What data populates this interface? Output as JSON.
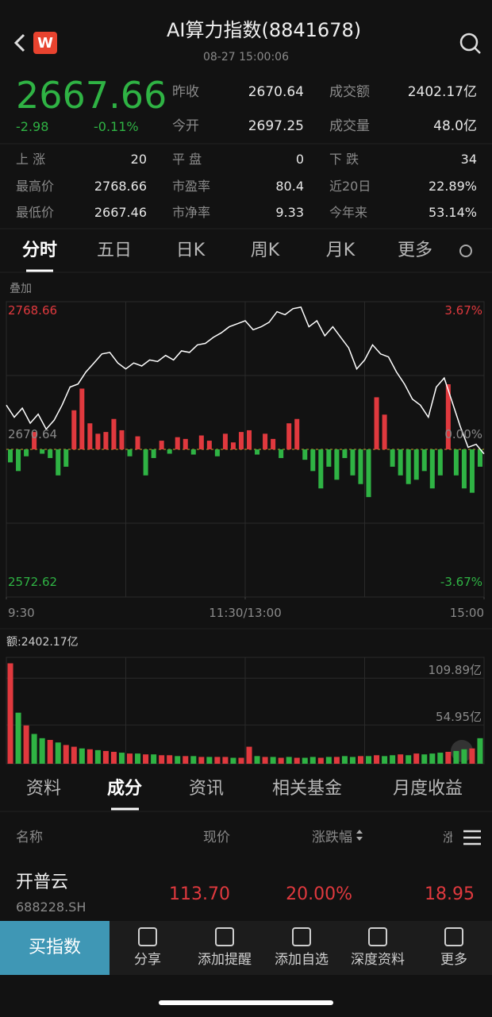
{
  "header": {
    "title": "AI算力指数(8841678)",
    "time": "08-27 15:00:06"
  },
  "quote": {
    "price": "2667.66",
    "change": "-2.98",
    "change_pct": "-0.11%"
  },
  "summary": [
    [
      "昨收",
      "2670.64",
      "成交额",
      "2402.17亿"
    ],
    [
      "今开",
      "2697.25",
      "成交量",
      "48.0亿"
    ]
  ],
  "stats": [
    [
      "上 涨",
      "20",
      "平 盘",
      "0",
      "下 跌",
      "34"
    ],
    [
      "最高价",
      "2768.66",
      "市盈率",
      "80.4",
      "近20日",
      "22.89%"
    ],
    [
      "最低价",
      "2667.46",
      "市净率",
      "9.33",
      "今年来",
      "53.14%"
    ]
  ],
  "chart_tabs": [
    "分时",
    "五日",
    "日K",
    "周K",
    "月K",
    "更多"
  ],
  "overlay_label": "叠加",
  "price_chart": {
    "type": "line",
    "x": [
      0,
      4,
      8,
      12,
      16,
      20,
      24,
      28,
      32,
      36,
      40,
      44,
      48,
      52,
      56,
      60,
      64,
      68,
      72,
      76,
      80,
      84,
      88,
      92,
      96,
      100,
      104,
      108,
      112,
      116,
      120,
      124,
      128,
      132,
      136,
      140,
      144,
      148,
      152,
      156,
      160,
      164,
      168,
      172,
      176,
      180,
      184,
      188,
      192,
      196,
      200,
      204,
      208,
      212,
      216,
      220,
      224,
      228,
      232,
      236,
      240
    ],
    "values": [
      2700,
      2692,
      2698,
      2688,
      2694,
      2684,
      2690,
      2700,
      2712,
      2714,
      2722,
      2728,
      2734,
      2735,
      2728,
      2724,
      2728,
      2726,
      2730,
      2729,
      2733,
      2730,
      2736,
      2735,
      2740,
      2741,
      2745,
      2748,
      2752,
      2754,
      2756,
      2750,
      2752,
      2755,
      2762,
      2760,
      2764,
      2765,
      2752,
      2756,
      2746,
      2752,
      2745,
      2738,
      2724,
      2730,
      2740,
      2734,
      2732,
      2722,
      2714,
      2704,
      2700,
      2692,
      2712,
      2718,
      2702,
      2686,
      2672,
      2674,
      2667.66
    ],
    "color": "#ffffff",
    "up_color": "#e0393e",
    "down_color": "#2fb344",
    "xlim": [
      0,
      240
    ],
    "xticks": [
      {
        "value": 0,
        "label": "9:30"
      },
      {
        "value": 120,
        "label": "11:30/13:00"
      },
      {
        "value": 240,
        "label": "15:00"
      }
    ],
    "ylim": [
      2572.62,
      2768.66
    ],
    "yticks": [
      2572.62,
      2670.64,
      2768.66
    ],
    "y2lim": [
      -3.67,
      3.67
    ],
    "y2ticks": [
      {
        "value": -3.67,
        "label": "-3.67%"
      },
      {
        "value": 0,
        "label": "0.00%"
      },
      {
        "value": 3.67,
        "label": "3.67%"
      }
    ],
    "grid": true
  },
  "breadth_bars": {
    "type": "bar",
    "values": [
      -15,
      -25,
      -8,
      20,
      -5,
      -10,
      -30,
      -20,
      45,
      70,
      30,
      18,
      20,
      35,
      22,
      -8,
      15,
      -30,
      -10,
      10,
      -5,
      14,
      12,
      -6,
      16,
      10,
      -8,
      18,
      8,
      20,
      22,
      -6,
      18,
      12,
      -10,
      30,
      35,
      -12,
      -25,
      -45,
      -20,
      -35,
      -10,
      -30,
      -40,
      -55,
      60,
      40,
      -20,
      -30,
      -40,
      -35,
      -25,
      -45,
      -30,
      75,
      -30,
      -45,
      -50,
      -20
    ]
  },
  "volume_chart": {
    "type": "bar",
    "label": "额:2402.17亿",
    "values": [
      118,
      60,
      45,
      35,
      30,
      28,
      25,
      22,
      20,
      18,
      17,
      16,
      15,
      14,
      13,
      12,
      12,
      11,
      11,
      10,
      10,
      9,
      9,
      9,
      8,
      8,
      8,
      8,
      7,
      7,
      20,
      9,
      8,
      8,
      7,
      8,
      7,
      7,
      8,
      7,
      8,
      8,
      9,
      8,
      9,
      9,
      10,
      9,
      10,
      11,
      10,
      12,
      11,
      12,
      13,
      14,
      15,
      17,
      18,
      30
    ],
    "colors": [
      "#e0393e",
      "#2fb344",
      "#e0393e",
      "#2fb344",
      "#2fb344",
      "#e0393e",
      "#2fb344",
      "#e0393e",
      "#e0393e",
      "#2fb344",
      "#e0393e",
      "#2fb344",
      "#e0393e",
      "#e0393e",
      "#2fb344",
      "#e0393e",
      "#2fb344",
      "#e0393e",
      "#2fb344",
      "#e0393e",
      "#e0393e",
      "#2fb344",
      "#e0393e",
      "#2fb344",
      "#e0393e",
      "#2fb344",
      "#e0393e",
      "#e0393e",
      "#2fb344",
      "#e0393e",
      "#e0393e",
      "#2fb344",
      "#e0393e",
      "#2fb344",
      "#e0393e",
      "#2fb344",
      "#e0393e",
      "#2fb344",
      "#2fb344",
      "#e0393e",
      "#2fb344",
      "#e0393e",
      "#2fb344",
      "#2fb344",
      "#e0393e",
      "#2fb344",
      "#e0393e",
      "#2fb344",
      "#2fb344",
      "#e0393e",
      "#2fb344",
      "#e0393e",
      "#2fb344",
      "#2fb344",
      "#2fb344",
      "#e0393e",
      "#2fb344",
      "#2fb344",
      "#e0393e",
      "#2fb344"
    ],
    "ylim": [
      0,
      125
    ],
    "yticks": [
      {
        "value": 54.95,
        "label": "54.95亿"
      },
      {
        "value": 109.89,
        "label": "109.89亿"
      }
    ]
  },
  "section_tabs": [
    "资料",
    "成分",
    "资讯",
    "相关基金",
    "月度收益"
  ],
  "table": {
    "header": [
      "名称",
      "现价",
      "涨跌幅",
      "涨"
    ],
    "rows": [
      {
        "name": "开普云",
        "code": "688228.SH",
        "cells": [
          "113.70",
          "20.00%",
          "18.95"
        ]
      }
    ]
  },
  "bottom_bar": {
    "buy": "买指数",
    "actions": [
      "分享",
      "添加提醒",
      "添加自选",
      "深度资料",
      "更多"
    ]
  }
}
